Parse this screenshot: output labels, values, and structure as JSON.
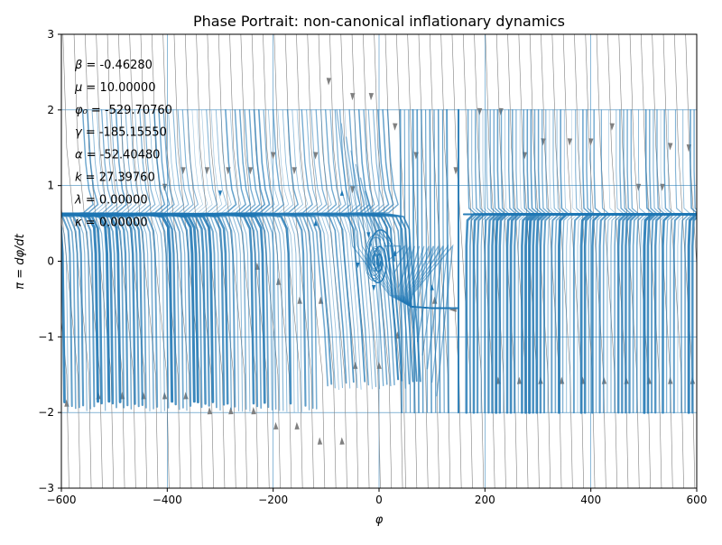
{
  "chart_data": {
    "type": "streamplot",
    "title": "Phase Portrait: non-canonical inflationary dynamics",
    "xlabel": "φ",
    "ylabel": "π = dφ/dt",
    "xlim": [
      -600,
      600
    ],
    "ylim": [
      -3,
      3
    ],
    "xticks": [
      -600,
      -400,
      -200,
      0,
      200,
      400,
      600
    ],
    "xtick_labels": [
      "−600",
      "−400",
      "−200",
      "0",
      "200",
      "400",
      "600"
    ],
    "yticks": [
      -3,
      -2,
      -1,
      0,
      1,
      2,
      3
    ],
    "ytick_labels": [
      "−3",
      "−2",
      "−1",
      "0",
      "1",
      "2",
      "3"
    ],
    "grid": true,
    "parameters": [
      {
        "symbol": "β",
        "value": "-0.46280"
      },
      {
        "symbol": "μ",
        "value": "10.00000"
      },
      {
        "symbol": "φ₀",
        "value": "-529.70760"
      },
      {
        "symbol": "γ",
        "value": "-185.15550"
      },
      {
        "symbol": "α",
        "value": "-52.40480"
      },
      {
        "symbol": "k",
        "value": "27.39760"
      },
      {
        "symbol": "λ",
        "value": "0.00000"
      },
      {
        "symbol": "κ",
        "value": "0.00000"
      }
    ],
    "attractor_levels": {
      "upper": 0.62,
      "lower": -0.62
    },
    "spiral_center": [
      0,
      0
    ],
    "colors": {
      "stream": "#1f77b4",
      "field": "#808080",
      "axes": "#000000"
    }
  }
}
